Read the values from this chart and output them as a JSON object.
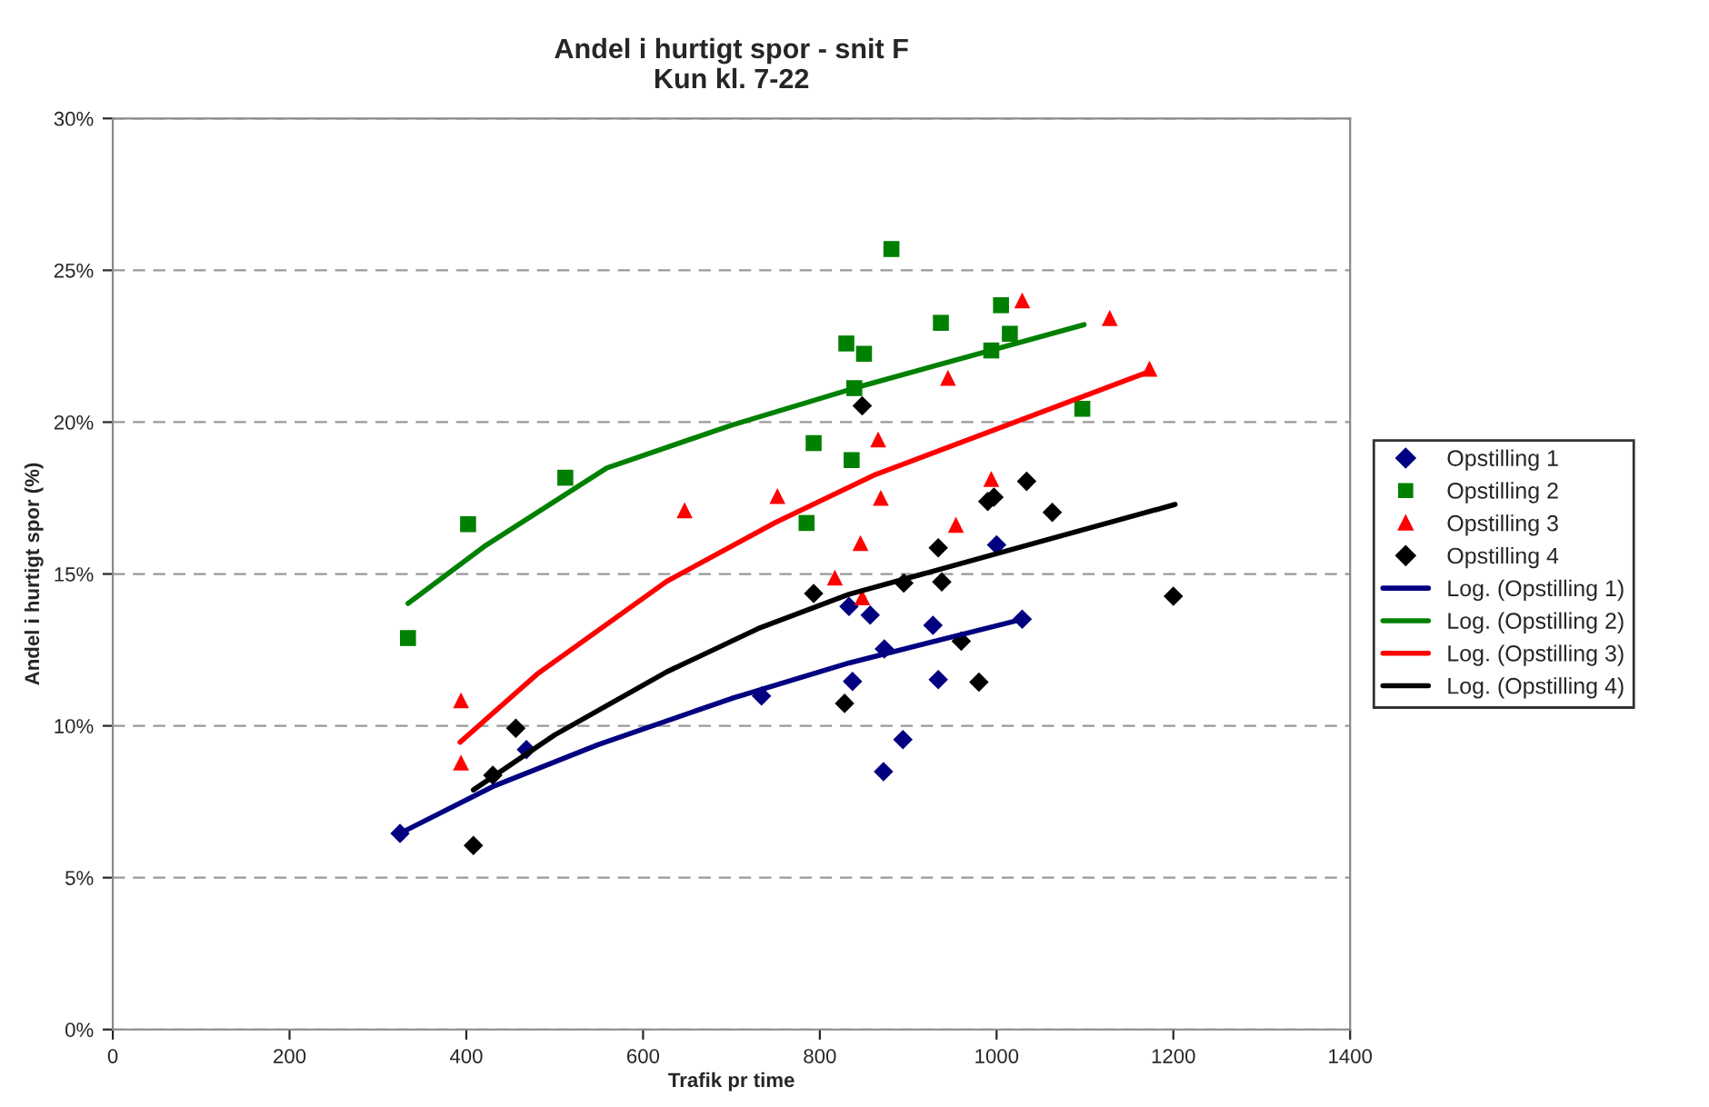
{
  "chart_data": {
    "type": "scatter",
    "title": "Andel i hurtigt spor - snit F\nKun kl. 7-22",
    "xlabel": "Trafik pr time",
    "ylabel": "Andel i hurtigt spor (%)",
    "xlim": [
      0,
      1400
    ],
    "xticks": [
      0,
      200,
      400,
      600,
      800,
      1000,
      1200,
      1400
    ],
    "ylim": [
      0,
      30
    ],
    "yticks": [
      {
        "value": 0,
        "label": "0%"
      },
      {
        "value": 5,
        "label": "5%"
      },
      {
        "value": 10,
        "label": "10%"
      },
      {
        "value": 15,
        "label": "15%"
      },
      {
        "value": 20,
        "label": "20%"
      },
      {
        "value": 25,
        "label": "25%"
      },
      {
        "value": 30,
        "label": "30%"
      }
    ],
    "grid": "y",
    "legend": "right",
    "series": [
      {
        "name": "Opstilling 1",
        "marker": "diamond",
        "color": "#000080",
        "x": [
          325,
          430,
          468,
          734,
          833,
          837,
          857,
          873,
          894,
          872,
          928,
          934,
          1000,
          1029
        ],
        "values": [
          6.46,
          null,
          9.22,
          10.98,
          13.93,
          11.46,
          13.65,
          12.53,
          9.55,
          8.49,
          13.31,
          11.52,
          15.96,
          13.51
        ]
      },
      {
        "name": "Opstilling 2",
        "marker": "square",
        "color": "#008000",
        "x": [
          334,
          402,
          512,
          785,
          793,
          836,
          830,
          850,
          839,
          881,
          937,
          1005,
          1015,
          994,
          1097
        ],
        "values": [
          12.89,
          16.64,
          18.17,
          16.68,
          19.31,
          18.75,
          22.59,
          22.25,
          21.12,
          25.7,
          23.27,
          23.85,
          22.91,
          22.36,
          20.44
        ]
      },
      {
        "name": "Opstilling 3",
        "marker": "triangle",
        "color": "#ff0000",
        "x": [
          394,
          394,
          647,
          752,
          866,
          869,
          945,
          994,
          954,
          846,
          817,
          848,
          1029,
          1128,
          1173
        ],
        "values": [
          10.84,
          8.79,
          17.1,
          17.57,
          19.43,
          17.51,
          21.46,
          18.13,
          16.62,
          16.02,
          14.88,
          14.23,
          24.01,
          23.43,
          21.76
        ]
      },
      {
        "name": "Opstilling 4",
        "marker": "diamond",
        "color": "#000000",
        "x": [
          408,
          430,
          456,
          793,
          828,
          848,
          895,
          934,
          938,
          960,
          980,
          990,
          997,
          1034,
          1063,
          1200
        ],
        "values": [
          6.06,
          8.37,
          9.92,
          14.36,
          10.74,
          20.54,
          14.7,
          15.86,
          14.74,
          12.79,
          11.44,
          17.39,
          17.53,
          18.05,
          17.03,
          14.27
        ]
      },
      {
        "name": "Log. (Opstilling 1)",
        "type": "line",
        "marker": "none",
        "line_style": "solid",
        "color": "#000080",
        "x": [
          325,
          430,
          549,
          700,
          833,
          1029
        ],
        "values": [
          6.46,
          8.0,
          9.38,
          10.9,
          12.07,
          13.51
        ]
      },
      {
        "name": "Log. (Opstilling 2)",
        "type": "line",
        "marker": "none",
        "line_style": "solid",
        "color": "#008000",
        "x": [
          334,
          420,
          559,
          700,
          839,
          1099
        ],
        "values": [
          14.03,
          15.9,
          18.49,
          19.9,
          21.12,
          23.21
        ]
      },
      {
        "name": "Log. (Opstilling 3)",
        "type": "line",
        "marker": "none",
        "line_style": "solid",
        "color": "#ff0000",
        "x": [
          393,
          480,
          627,
          750,
          861,
          1174
        ],
        "values": [
          9.46,
          11.7,
          14.76,
          16.7,
          18.25,
          21.68
        ]
      },
      {
        "name": "Log. (Opstilling 4)",
        "type": "line",
        "marker": "none",
        "line_style": "solid",
        "color": "#000000",
        "x": [
          408,
          500,
          627,
          730,
          833,
          1202
        ],
        "values": [
          7.89,
          9.7,
          11.78,
          13.2,
          14.33,
          17.29
        ]
      }
    ]
  }
}
